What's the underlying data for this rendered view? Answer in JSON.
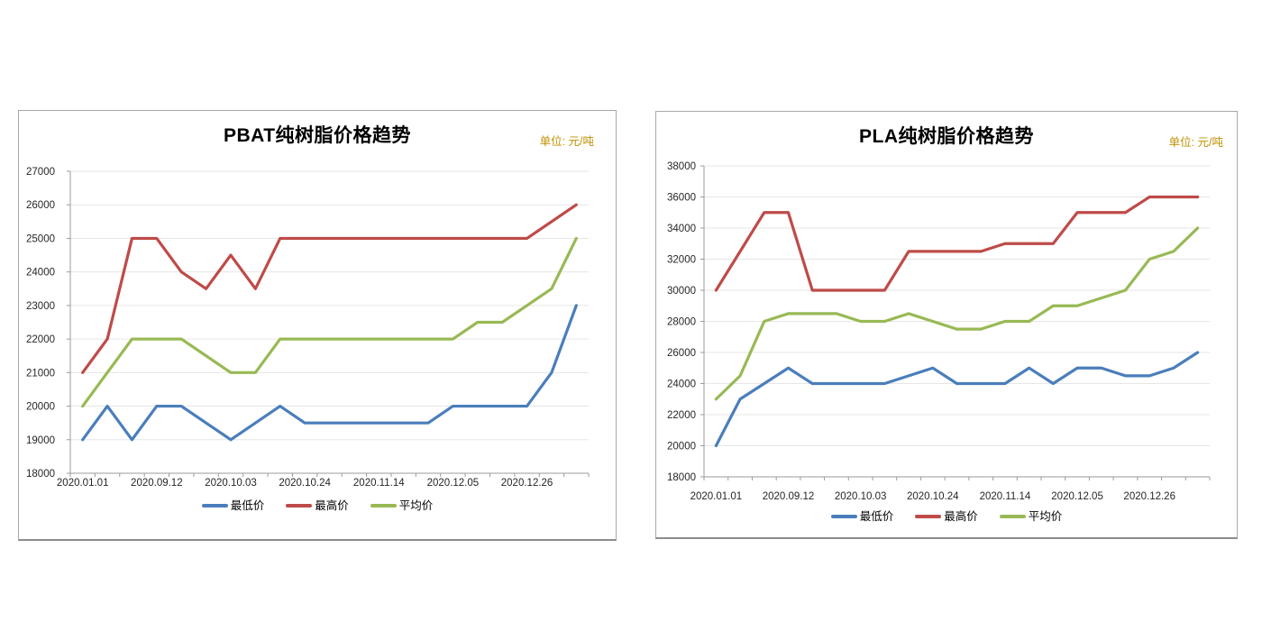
{
  "page": {
    "background_color": "#ffffff"
  },
  "chart_data": [
    {
      "type": "line",
      "title": "PBAT纯树脂价格趋势",
      "unit_label": "单位: 元/吨",
      "x_tick_labels": [
        "2020.01.01",
        "2020.09.12",
        "2020.10.03",
        "2020.10.24",
        "2020.11.14",
        "2020.12.05",
        "2020.12.26"
      ],
      "x_label_interval": 3,
      "n_points": 21,
      "ylim": [
        18000,
        27000
      ],
      "ytick_step": 1000,
      "grid": true,
      "legend_position": "bottom",
      "colors": {
        "grid": "#e6e6e6",
        "axis": "#9b9b9b"
      },
      "series": [
        {
          "name": "最低价",
          "color": "#4a7ebb",
          "values": [
            19000,
            20000,
            19000,
            20000,
            20000,
            19500,
            19000,
            19500,
            20000,
            19500,
            19500,
            19500,
            19500,
            19500,
            19500,
            20000,
            20000,
            20000,
            20000,
            21000,
            23000
          ]
        },
        {
          "name": "最高价",
          "color": "#be4b48",
          "values": [
            21000,
            22000,
            25000,
            25000,
            24000,
            23500,
            24500,
            23500,
            25000,
            25000,
            25000,
            25000,
            25000,
            25000,
            25000,
            25000,
            25000,
            25000,
            25000,
            25500,
            26000
          ]
        },
        {
          "name": "平均价",
          "color": "#98b954",
          "values": [
            20000,
            21000,
            22000,
            22000,
            22000,
            21500,
            21000,
            21000,
            22000,
            22000,
            22000,
            22000,
            22000,
            22000,
            22000,
            22000,
            22500,
            22500,
            23000,
            23500,
            25000
          ]
        }
      ]
    },
    {
      "type": "line",
      "title": "PLA纯树脂价格趋势",
      "unit_label": "单位: 元/吨",
      "x_tick_labels": [
        "2020.01.01",
        "2020.09.12",
        "2020.10.03",
        "2020.10.24",
        "2020.11.14",
        "2020.12.05",
        "2020.12.26"
      ],
      "x_label_interval": 3,
      "n_points": 21,
      "ylim": [
        18000,
        38000
      ],
      "ytick_step": 2000,
      "grid": true,
      "legend_position": "bottom",
      "colors": {
        "grid": "#e6e6e6",
        "axis": "#9b9b9b"
      },
      "series": [
        {
          "name": "最低价",
          "color": "#4a7ebb",
          "values": [
            20000,
            23000,
            24000,
            25000,
            24000,
            24000,
            24000,
            24000,
            24500,
            25000,
            24000,
            24000,
            24000,
            25000,
            24000,
            25000,
            25000,
            24500,
            24500,
            25000,
            26000
          ]
        },
        {
          "name": "最高价",
          "color": "#be4b48",
          "values": [
            30000,
            32500,
            35000,
            35000,
            30000,
            30000,
            30000,
            30000,
            32500,
            32500,
            32500,
            32500,
            33000,
            33000,
            33000,
            35000,
            35000,
            35000,
            36000,
            36000,
            36000
          ]
        },
        {
          "name": "平均价",
          "color": "#98b954",
          "values": [
            23000,
            24500,
            28000,
            28500,
            28500,
            28500,
            28000,
            28000,
            28500,
            28000,
            27500,
            27500,
            28000,
            28000,
            29000,
            29000,
            29500,
            30000,
            32000,
            32500,
            34000
          ]
        }
      ]
    }
  ]
}
